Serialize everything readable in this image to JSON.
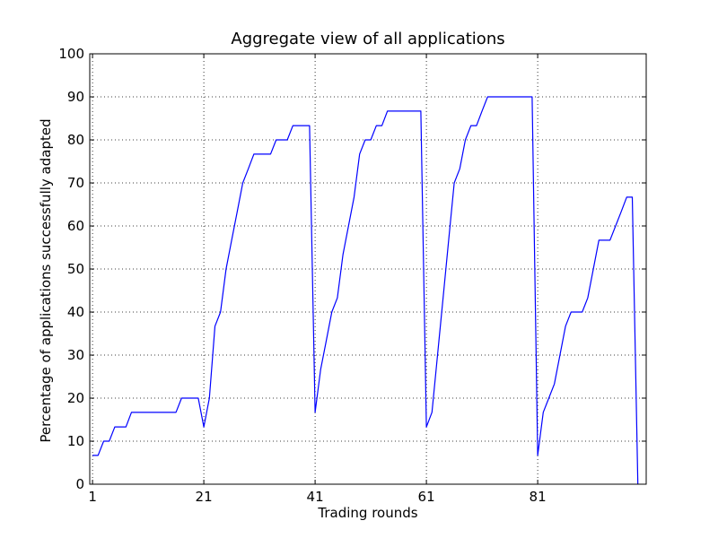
{
  "chart_data": {
    "type": "line",
    "title": "Aggregate view of all applications",
    "xlabel": "Trading rounds",
    "ylabel": "Percentage of applications successfully adapted",
    "xlim": [
      0.5,
      100.5
    ],
    "ylim": [
      0,
      100
    ],
    "xticks": [
      1,
      21,
      41,
      61,
      81
    ],
    "yticks": [
      0,
      10,
      20,
      30,
      40,
      50,
      60,
      70,
      80,
      90,
      100
    ],
    "grid": true,
    "series": [
      {
        "color": "#0000ff",
        "x": [
          1,
          2,
          3,
          4,
          5,
          6,
          7,
          8,
          9,
          10,
          11,
          12,
          13,
          14,
          15,
          16,
          17,
          18,
          19,
          20,
          21,
          22,
          23,
          24,
          25,
          26,
          27,
          28,
          29,
          30,
          31,
          32,
          33,
          34,
          35,
          36,
          37,
          38,
          39,
          40,
          41,
          42,
          43,
          44,
          45,
          46,
          47,
          48,
          49,
          50,
          51,
          52,
          53,
          54,
          55,
          56,
          57,
          58,
          59,
          60,
          61,
          62,
          63,
          64,
          65,
          66,
          67,
          68,
          69,
          70,
          71,
          72,
          73,
          74,
          75,
          76,
          77,
          78,
          79,
          80,
          81,
          82,
          83,
          84,
          85,
          86,
          87,
          88,
          89,
          90,
          91,
          92,
          93,
          94,
          95,
          96,
          97,
          98,
          99
        ],
        "y": [
          6.7,
          6.7,
          10.0,
          10.0,
          13.3,
          13.3,
          13.3,
          16.7,
          16.7,
          16.7,
          16.7,
          16.7,
          16.7,
          16.7,
          16.7,
          16.7,
          20.0,
          20.0,
          20.0,
          20.0,
          13.3,
          20.0,
          36.7,
          40.0,
          50.0,
          56.7,
          63.3,
          70.0,
          73.3,
          76.7,
          76.7,
          76.7,
          76.7,
          80.0,
          80.0,
          80.0,
          83.3,
          83.3,
          83.3,
          83.3,
          16.7,
          26.7,
          33.3,
          40.0,
          43.3,
          53.3,
          60.0,
          66.7,
          76.7,
          80.0,
          80.0,
          83.3,
          83.3,
          86.7,
          86.7,
          86.7,
          86.7,
          86.7,
          86.7,
          86.7,
          13.3,
          16.7,
          30.0,
          43.3,
          56.7,
          70.0,
          73.3,
          80.0,
          83.3,
          83.3,
          86.7,
          90.0,
          90.0,
          90.0,
          90.0,
          90.0,
          90.0,
          90.0,
          90.0,
          90.0,
          6.7,
          16.7,
          20.0,
          23.3,
          30.0,
          36.7,
          40.0,
          40.0,
          40.0,
          43.3,
          50.0,
          56.7,
          56.7,
          56.7,
          60.0,
          63.3,
          66.7,
          66.7,
          0.0
        ]
      }
    ]
  }
}
